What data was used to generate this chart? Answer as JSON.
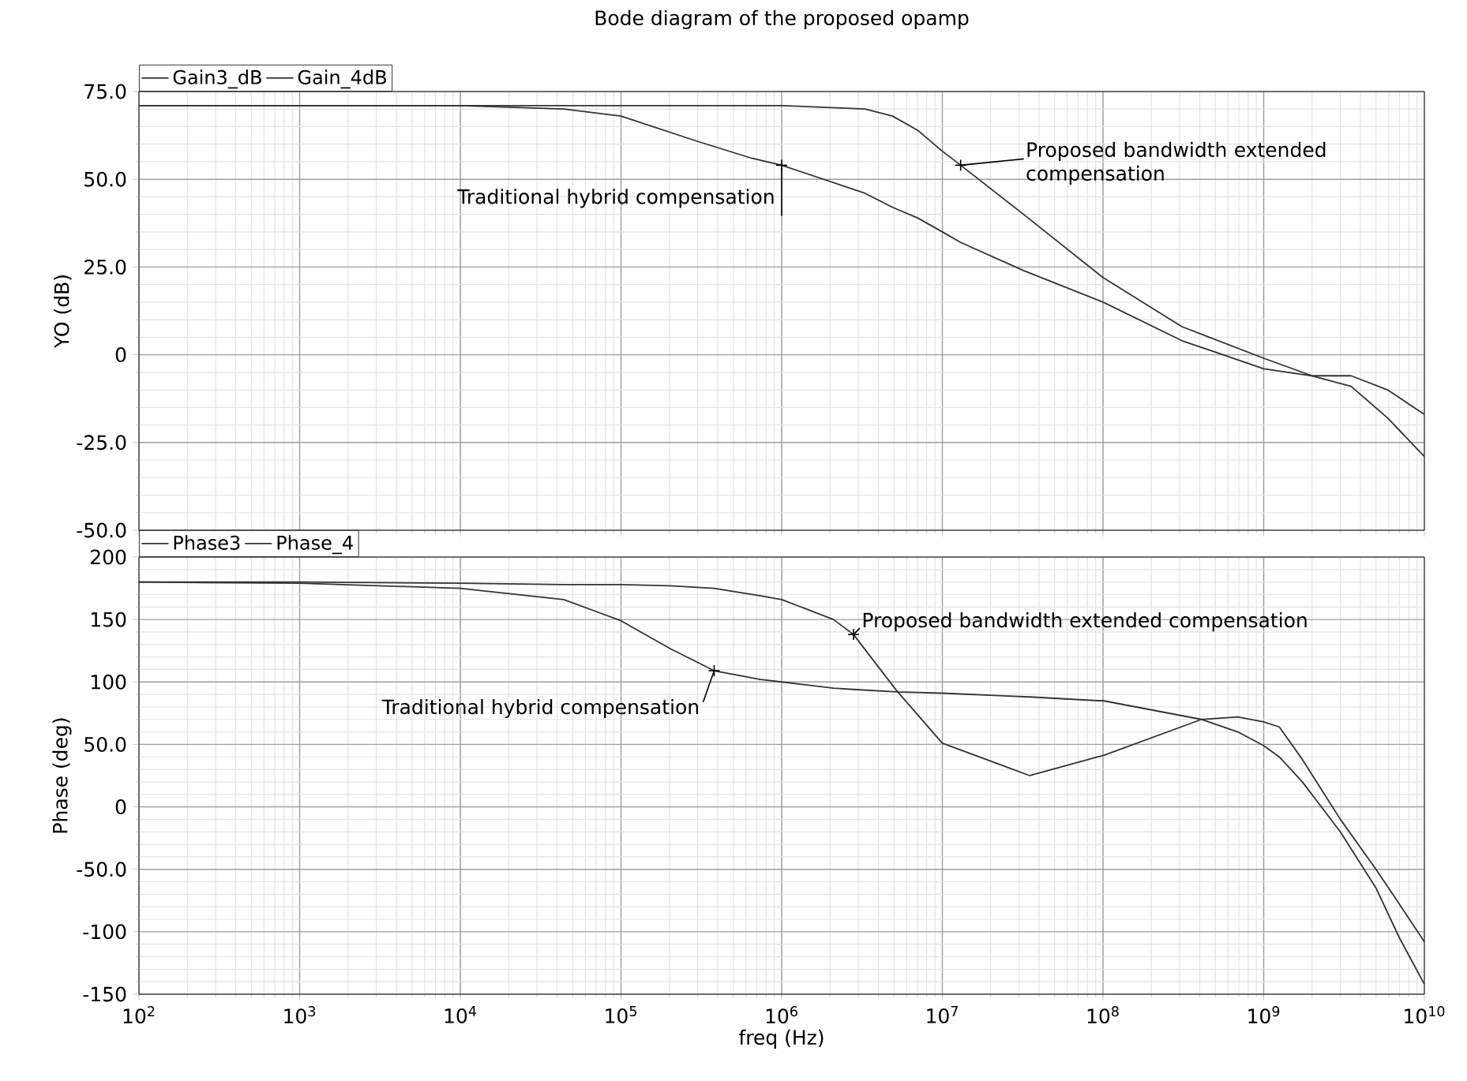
{
  "chart_data": [
    {
      "type": "line",
      "title": "Bode diagram of the proposed opamp",
      "ylabel": "YO (dB)",
      "x": [
        100,
        1000,
        10000,
        44000,
        100000,
        290000,
        650000,
        1000000,
        3300000,
        4900000,
        7000000,
        10000000,
        13000000,
        32000000,
        100000000,
        310000000,
        1000000000,
        2000000000,
        3500000000,
        5900000000,
        10000000000
      ],
      "series": [
        {
          "name": "Gain3_dB",
          "color": "#333333",
          "values": [
            71,
            71,
            71,
            70,
            68,
            61,
            56,
            54,
            46,
            42,
            39,
            35,
            32,
            24,
            15,
            4,
            -4,
            -6,
            -6,
            -10,
            -17
          ]
        },
        {
          "name": "Gain_4dB",
          "color": "#333333",
          "values": [
            71,
            71,
            71,
            71,
            71,
            71,
            71,
            71,
            70,
            68,
            64,
            58,
            54,
            40,
            22,
            8,
            -1,
            -6,
            -9,
            -18,
            -29
          ]
        }
      ],
      "xlim": [
        100,
        10000000000
      ],
      "xticks": [
        {
          "value": 100,
          "label": null
        },
        {
          "value": 1000,
          "label": null
        },
        {
          "value": 10000,
          "label": null
        },
        {
          "value": 100000,
          "label": null
        },
        {
          "value": 1000000,
          "label": null
        },
        {
          "value": 10000000,
          "label": null
        },
        {
          "value": 100000000,
          "label": null
        },
        {
          "value": 1000000000,
          "label": null
        },
        {
          "value": 10000000000,
          "label": null
        }
      ],
      "ylim": [
        -50,
        75
      ],
      "yticks": [
        {
          "value": -50,
          "label": "-50.0"
        },
        {
          "value": -25,
          "label": "-25.0"
        },
        0,
        {
          "value": 25,
          "label": "25.0"
        },
        {
          "value": 50,
          "label": "50.0"
        },
        {
          "value": 75,
          "label": "75.0"
        }
      ],
      "tick_labels": "y",
      "log": "x",
      "grid": true,
      "legend": "top left",
      "annotations": [
        {
          "text": "Traditional hybrid compensation",
          "x": 1000000,
          "y": 54
        },
        {
          "text": "Proposed bandwidth extended compensation",
          "x": 13000000,
          "y": 54
        }
      ]
    },
    {
      "type": "line",
      "xlabel": "freq (Hz)",
      "ylabel": "Phase (deg)",
      "x": [
        100,
        1000,
        10000,
        44000,
        100000,
        200000,
        380000,
        740000,
        1000000,
        2100000,
        2800000,
        5200000,
        10000000,
        35000000,
        93000000,
        100000000,
        410000000,
        690000000,
        1000000000,
        1250000000,
        1740000000,
        3000000000,
        5000000000,
        7000000000,
        10000000000
      ],
      "series": [
        {
          "name": "Phase3",
          "color": "#333333",
          "values": [
            180,
            179,
            175,
            166,
            149,
            127,
            109,
            102,
            100,
            95,
            94,
            92,
            91,
            88,
            85,
            85,
            70,
            60,
            49,
            40,
            20,
            -20,
            -65,
            -105,
            -142
          ]
        },
        {
          "name": "Phase_4",
          "color": "#333333",
          "values": [
            180,
            180,
            179,
            178,
            178,
            177,
            175,
            169,
            166,
            150,
            138,
            93,
            51,
            25,
            40,
            41,
            70,
            72,
            68,
            64,
            38,
            -10,
            -50,
            -78,
            -108
          ]
        }
      ],
      "xlim": [
        100,
        10000000000
      ],
      "xticks": [
        {
          "value": 100,
          "label": "10$^{2}$"
        },
        {
          "value": 1000,
          "label": "10$^{3}$"
        },
        {
          "value": 10000,
          "label": "10$^{4}$"
        },
        {
          "value": 100000,
          "label": "10$^{5}$"
        },
        {
          "value": 1000000,
          "label": "10$^{6}$"
        },
        {
          "value": 10000000,
          "label": "10$^{7}$"
        },
        {
          "value": 100000000,
          "label": "10$^{8}$"
        },
        {
          "value": 1000000000,
          "label": "10$^{9}$"
        },
        {
          "value": 10000000000,
          "label": "10$^{10}$"
        }
      ],
      "ylim": [
        -150,
        200
      ],
      "yticks": [
        -150,
        -100,
        {
          "value": -50,
          "label": "-50.0"
        },
        0,
        {
          "value": 50,
          "label": "50.0"
        },
        100,
        150,
        200
      ],
      "log": "x",
      "grid": true,
      "legend": "top left",
      "annotations": [
        {
          "text": "Proposed bandwidth extended compensation",
          "x": 2800000,
          "y": 138
        },
        {
          "text": "Traditional hybrid compensation",
          "x": 380000,
          "y": 109
        }
      ]
    }
  ]
}
